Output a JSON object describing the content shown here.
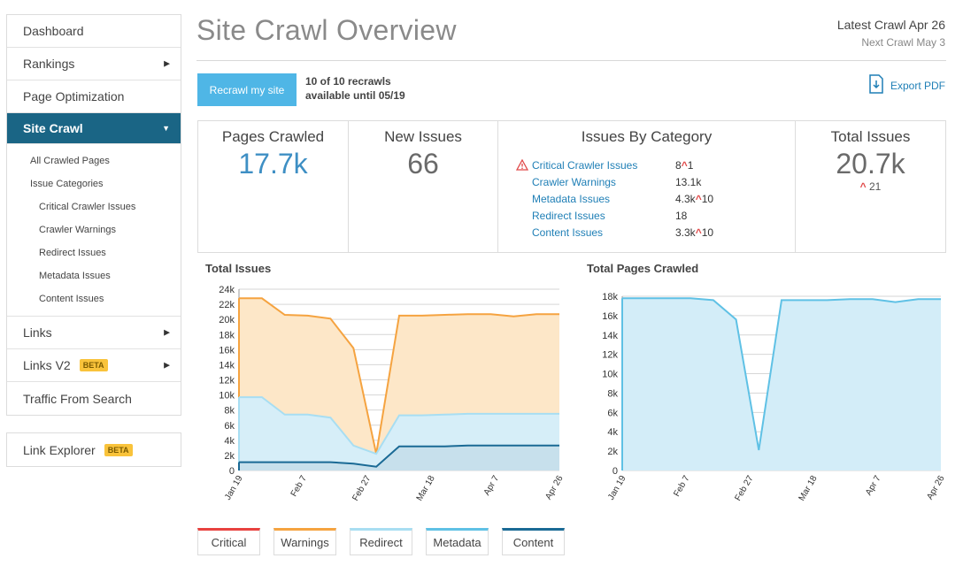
{
  "sidebar": {
    "group1": [
      {
        "label": "Dashboard",
        "chevron": false
      },
      {
        "label": "Rankings",
        "chevron": true
      },
      {
        "label": "Page Optimization",
        "chevron": false
      },
      {
        "label": "Site Crawl",
        "chevron": true,
        "active": true
      }
    ],
    "subitems": [
      "All Crawled Pages",
      "Issue Categories",
      "Critical Crawler Issues",
      "Crawler Warnings",
      "Redirect Issues",
      "Metadata Issues",
      "Content Issues"
    ],
    "group1_after": [
      {
        "label": "Links",
        "chevron": true
      },
      {
        "label": "Links V2",
        "badge": "BETA",
        "chevron": true
      },
      {
        "label": "Traffic From Search",
        "chevron": false
      }
    ],
    "group2": [
      {
        "label": "Link Explorer",
        "badge": "BETA"
      }
    ]
  },
  "header": {
    "title": "Site Crawl Overview",
    "latest_crawl": "Latest Crawl Apr 26",
    "next_crawl": "Next Crawl May 3",
    "recrawl_button": "Recrawl my site",
    "recrawl_count": "10 of 10 recrawls",
    "recrawl_until": "available until 05/19",
    "export_label": "Export PDF"
  },
  "stats": {
    "pages_crawled": {
      "title": "Pages Crawled",
      "value": "17.7k"
    },
    "new_issues": {
      "title": "New Issues",
      "value": "66"
    },
    "issues_by_category": {
      "title": "Issues By Category",
      "rows": [
        {
          "name": "Critical Crawler Issues",
          "value": "8",
          "delta": "1",
          "warn": true
        },
        {
          "name": "Crawler Warnings",
          "value": "13.1k",
          "delta": ""
        },
        {
          "name": "Metadata Issues",
          "value": "4.3k",
          "delta": "10"
        },
        {
          "name": "Redirect Issues",
          "value": "18",
          "delta": ""
        },
        {
          "name": "Content Issues",
          "value": "3.3k",
          "delta": "10"
        }
      ]
    },
    "total_issues": {
      "title": "Total Issues",
      "value": "20.7k",
      "delta": "21"
    }
  },
  "colors": {
    "critical": "#e8423f",
    "warnings": "#f5a340",
    "redirect": "#a8def2",
    "metadata": "#5fc1e5",
    "content": "#1a6a95",
    "accent": "#1a6585",
    "button": "#4fb6e6"
  },
  "legend": [
    "Critical",
    "Warnings",
    "Redirect",
    "Metadata",
    "Content"
  ],
  "chart_data": [
    {
      "type": "area",
      "title": "Total Issues",
      "x": [
        "Jan 19",
        "Jan 23",
        "Jan 29",
        "Feb 3",
        "Feb 11",
        "Feb 19",
        "Feb 27",
        "Mar 5",
        "Mar 14",
        "Mar 24",
        "Apr 2",
        "Apr 10",
        "Apr 16",
        "Apr 20",
        "Apr 26"
      ],
      "xticks": [
        "Jan 19",
        "Feb 7",
        "Feb 27",
        "Mar 18",
        "Apr 7",
        "Apr 26"
      ],
      "ylim": [
        0,
        24000
      ],
      "yticks": [
        "0",
        "2k",
        "4k",
        "6k",
        "8k",
        "10k",
        "12k",
        "14k",
        "16k",
        "18k",
        "20k",
        "22k",
        "24k"
      ],
      "series": [
        {
          "name": "Warnings",
          "values": [
            22800,
            22800,
            20600,
            20500,
            20100,
            16200,
            2200,
            20500,
            20500,
            20600,
            20700,
            20700,
            20400,
            20700,
            20700
          ]
        },
        {
          "name": "Redirect",
          "values": [
            9700,
            9700,
            7400,
            7400,
            7000,
            3300,
            2200,
            7300,
            7300,
            7400,
            7500,
            7500,
            7500,
            7500,
            7500
          ]
        },
        {
          "name": "Content",
          "values": [
            1100,
            1100,
            1100,
            1100,
            1100,
            900,
            500,
            3200,
            3200,
            3200,
            3300,
            3300,
            3300,
            3300,
            3300
          ]
        }
      ],
      "grid": true
    },
    {
      "type": "area",
      "title": "Total Pages Crawled",
      "x": [
        "Jan 19",
        "Jan 23",
        "Jan 29",
        "Feb 3",
        "Feb 11",
        "Feb 19",
        "Feb 24",
        "Mar 3",
        "Mar 14",
        "Mar 24",
        "Apr 2",
        "Apr 10",
        "Apr 16",
        "Apr 20",
        "Apr 26"
      ],
      "xticks": [
        "Jan 19",
        "Feb 7",
        "Feb 27",
        "Mar 18",
        "Apr 7",
        "Apr 26"
      ],
      "ylim": [
        0,
        18000
      ],
      "yticks": [
        "0",
        "2k",
        "4k",
        "6k",
        "8k",
        "10k",
        "12k",
        "14k",
        "16k",
        "18k"
      ],
      "series": [
        {
          "name": "Pages",
          "values": [
            17800,
            17800,
            17800,
            17800,
            17600,
            15600,
            2100,
            17600,
            17600,
            17600,
            17700,
            17700,
            17400,
            17700,
            17700
          ]
        }
      ],
      "grid": true
    }
  ]
}
